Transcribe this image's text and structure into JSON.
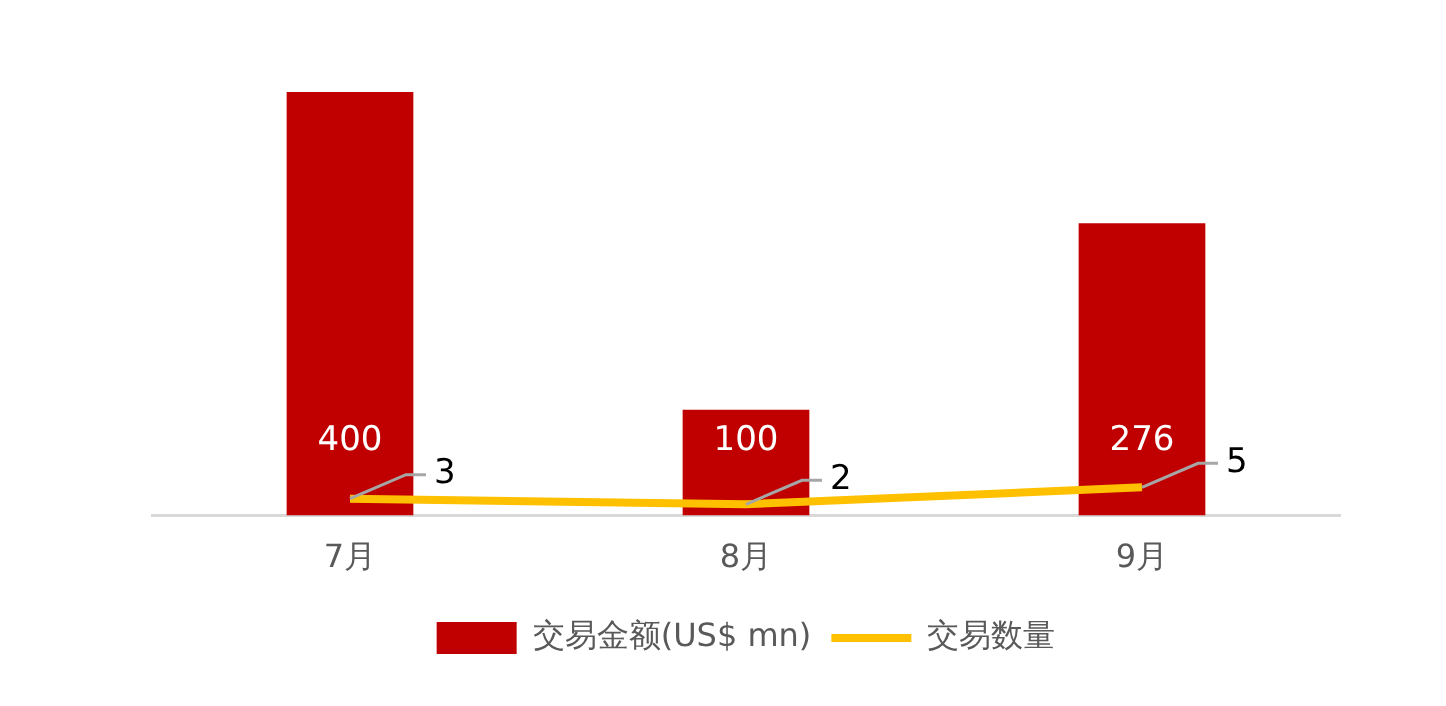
{
  "chart_data": {
    "type": "bar",
    "categories": [
      "7月",
      "8月",
      "9月"
    ],
    "series": [
      {
        "name": "交易金额(US$ mn)",
        "color": "#c00000",
        "values": [
          400,
          100,
          276
        ]
      },
      {
        "name": "交易数量",
        "type": "line",
        "axis": "y2",
        "color": "#ffc000",
        "values": [
          3,
          2,
          5
        ]
      }
    ],
    "data_labels": true,
    "legend": "bottom",
    "grid": false,
    "marker": "none"
  }
}
